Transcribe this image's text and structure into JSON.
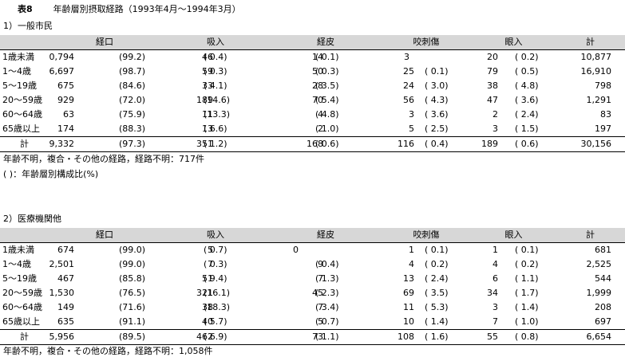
{
  "title": {
    "table_no": "表8",
    "text": "年齢層別摂取経路（1993年4月～1994年3月）"
  },
  "columns": [
    "経口",
    "吸入",
    "経皮",
    "咬刺傷",
    "眼入",
    "計"
  ],
  "section1": {
    "heading": "1）一般市民",
    "rows": [
      {
        "label": "1歳未満",
        "oral_n": "10,794",
        "oral_p": "(99.2)",
        "inh_n": "46",
        "inh_p": "( 0.4)",
        "skin_n": "14",
        "skin_p": "( 0.1)",
        "bite_n": "3",
        "bite_p": "",
        "eye_n": "20",
        "eye_p": "( 0.2)",
        "total": "10,877"
      },
      {
        "label": "1～4歳",
        "oral_n": "16,697",
        "oral_p": "(98.7)",
        "inh_n": "59",
        "inh_p": "( 0.3)",
        "skin_n": "50",
        "skin_p": "( 0.3)",
        "bite_n": "25",
        "bite_p": "( 0.1)",
        "eye_n": "79",
        "eye_p": "( 0.5)",
        "total": "16,910"
      },
      {
        "label": "5～19歳",
        "oral_n": "675",
        "oral_p": "(84.6)",
        "inh_n": "33",
        "inh_p": "( 4.1)",
        "skin_n": "28",
        "skin_p": "( 3.5)",
        "bite_n": "24",
        "bite_p": "( 3.0)",
        "eye_n": "38",
        "eye_p": "( 4.8)",
        "total": "798"
      },
      {
        "label": "20～59歳",
        "oral_n": "929",
        "oral_p": "(72.0)",
        "inh_n": "189",
        "inh_p": "(14.6)",
        "skin_n": "70",
        "skin_p": "( 5.4)",
        "bite_n": "56",
        "bite_p": "( 4.3)",
        "eye_n": "47",
        "eye_p": "( 3.6)",
        "total": "1,291"
      },
      {
        "label": "60～64歳",
        "oral_n": "63",
        "oral_p": "(75.9)",
        "inh_n": "11",
        "inh_p": "(13.3)",
        "skin_n": "4",
        "skin_p": "( 4.8)",
        "bite_n": "3",
        "bite_p": "( 3.6)",
        "eye_n": "2",
        "eye_p": "( 2.4)",
        "total": "83"
      },
      {
        "label": "65歳以上",
        "oral_n": "174",
        "oral_p": "(88.3)",
        "inh_n": "13",
        "inh_p": "( 6.6)",
        "skin_n": "2",
        "skin_p": "( 1.0)",
        "bite_n": "5",
        "bite_p": "( 2.5)",
        "eye_n": "3",
        "eye_p": "( 1.5)",
        "total": "197"
      }
    ],
    "total": {
      "label": "計",
      "oral_n": "29,332",
      "oral_p": "(97.3)",
      "inh_n": "351",
      "inh_p": "( 1.2)",
      "skin_n": "168",
      "skin_p": "( 0.6)",
      "bite_n": "116",
      "bite_p": "( 0.4)",
      "eye_n": "189",
      "eye_p": "( 0.6)",
      "total": "30,156"
    },
    "note1": "年齢不明，複合・その他の経路，経路不明：717件",
    "note2": "( )：年齢層別構成比(%)"
  },
  "section2": {
    "heading": "2）医療機関他",
    "rows": [
      {
        "label": "1歳未満",
        "oral_n": "674",
        "oral_p": "(99.0)",
        "inh_n": "5",
        "inh_p": "( 0.7)",
        "skin_n": "0",
        "skin_p": "",
        "bite_n": "1",
        "bite_p": "( 0.1)",
        "eye_n": "1",
        "eye_p": "( 0.1)",
        "total": "681"
      },
      {
        "label": "1～4歳",
        "oral_n": "2,501",
        "oral_p": "(99.0)",
        "inh_n": "7",
        "inh_p": "( 0.3)",
        "skin_n": "9",
        "skin_p": "( 0.4)",
        "bite_n": "4",
        "bite_p": "( 0.2)",
        "eye_n": "4",
        "eye_p": "( 0.2)",
        "total": "2,525"
      },
      {
        "label": "5～19歳",
        "oral_n": "467",
        "oral_p": "(85.8)",
        "inh_n": "51",
        "inh_p": "( 9.4)",
        "skin_n": "7",
        "skin_p": "( 1.3)",
        "bite_n": "13",
        "bite_p": "( 2.4)",
        "eye_n": "6",
        "eye_p": "( 1.1)",
        "total": "544"
      },
      {
        "label": "20～59歳",
        "oral_n": "1,530",
        "oral_p": "(76.5)",
        "inh_n": "321",
        "inh_p": "(16.1)",
        "skin_n": "45",
        "skin_p": "( 2.3)",
        "bite_n": "69",
        "bite_p": "( 3.5)",
        "eye_n": "34",
        "eye_p": "( 1.7)",
        "total": "1,999"
      },
      {
        "label": "60～64歳",
        "oral_n": "149",
        "oral_p": "(71.6)",
        "inh_n": "38",
        "inh_p": "(18.3)",
        "skin_n": "7",
        "skin_p": "( 3.4)",
        "bite_n": "11",
        "bite_p": "( 5.3)",
        "eye_n": "3",
        "eye_p": "( 1.4)",
        "total": "208"
      },
      {
        "label": "65歳以上",
        "oral_n": "635",
        "oral_p": "(91.1)",
        "inh_n": "40",
        "inh_p": "( 5.7)",
        "skin_n": "5",
        "skin_p": "( 0.7)",
        "bite_n": "10",
        "bite_p": "( 1.4)",
        "eye_n": "7",
        "eye_p": "( 1.0)",
        "total": "697"
      }
    ],
    "total": {
      "label": "計",
      "oral_n": "5,956",
      "oral_p": "(89.5)",
      "inh_n": "462",
      "inh_p": "( 6.9)",
      "skin_n": "73",
      "skin_p": "( 1.1)",
      "bite_n": "108",
      "bite_p": "( 1.6)",
      "eye_n": "55",
      "eye_p": "( 0.8)",
      "total": "6,654"
    },
    "note1": "年齢不明，複合・その他の経路，経路不明：1,058件"
  }
}
